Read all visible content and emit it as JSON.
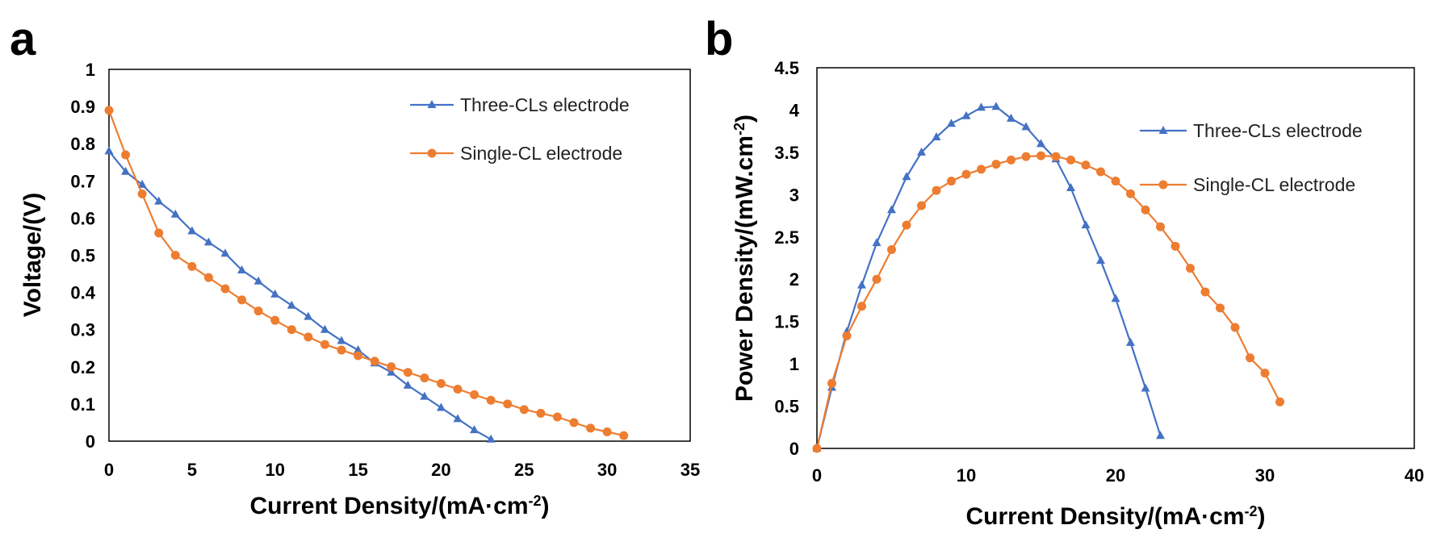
{
  "panels": {
    "a": "a",
    "b": "b"
  },
  "colors": {
    "three": "#4472C4",
    "single": "#ED7D31"
  },
  "chart_data": [
    {
      "type": "line",
      "panel": "a",
      "xlabel_main": "Current Density/(mA·cm",
      "xlabel_sup": "-2",
      "xlabel_end": ")",
      "ylabel": "Voltage/(V)",
      "xlim": [
        0,
        35
      ],
      "ylim": [
        0,
        1
      ],
      "xticks": [
        0,
        5,
        10,
        15,
        20,
        25,
        30,
        35
      ],
      "yticks": [
        0,
        0.1,
        0.2,
        0.3,
        0.4,
        0.5,
        0.6,
        0.7,
        0.8,
        0.9,
        1
      ],
      "xtick_labels": [
        "0",
        "5",
        "10",
        "15",
        "20",
        "25",
        "30",
        "35"
      ],
      "ytick_labels": [
        "0",
        "0.1",
        "0.2",
        "0.3",
        "0.4",
        "0.5",
        "0.6",
        "0.7",
        "0.8",
        "0.9",
        "1"
      ],
      "legend_position": "top-right",
      "series": [
        {
          "name": "Three-CLs electrode",
          "marker": "triangle",
          "x": [
            0,
            1,
            2,
            3,
            4,
            5,
            6,
            7,
            8,
            9,
            10,
            11,
            12,
            13,
            14,
            15,
            16,
            17,
            18,
            19,
            20,
            21,
            22,
            23
          ],
          "y": [
            0.78,
            0.725,
            0.69,
            0.645,
            0.61,
            0.565,
            0.535,
            0.505,
            0.46,
            0.43,
            0.395,
            0.365,
            0.335,
            0.3,
            0.27,
            0.245,
            0.21,
            0.185,
            0.15,
            0.12,
            0.09,
            0.06,
            0.03,
            0.005
          ]
        },
        {
          "name": "Single-CL electrode",
          "marker": "circle",
          "x": [
            0,
            1,
            2,
            3,
            4,
            5,
            6,
            7,
            8,
            9,
            10,
            11,
            12,
            13,
            14,
            15,
            16,
            17,
            18,
            19,
            20,
            21,
            22,
            23,
            24,
            25,
            26,
            27,
            28,
            29,
            30,
            31
          ],
          "y": [
            0.89,
            0.77,
            0.665,
            0.56,
            0.5,
            0.47,
            0.44,
            0.41,
            0.38,
            0.35,
            0.325,
            0.3,
            0.28,
            0.26,
            0.245,
            0.23,
            0.215,
            0.2,
            0.185,
            0.17,
            0.155,
            0.14,
            0.125,
            0.11,
            0.1,
            0.085,
            0.075,
            0.065,
            0.05,
            0.035,
            0.025,
            0.015
          ]
        }
      ]
    },
    {
      "type": "line",
      "panel": "b",
      "xlabel_main": "Current Density/(mA·cm",
      "xlabel_sup": "-2",
      "xlabel_end": ")",
      "ylabel_main": "Power Density/(mW.cm",
      "ylabel_sup": "-2",
      "ylabel_end": ")",
      "xlim": [
        0,
        40
      ],
      "ylim": [
        0,
        4.5
      ],
      "xticks": [
        0,
        10,
        20,
        30,
        40
      ],
      "yticks": [
        0,
        0.5,
        1,
        1.5,
        2,
        2.5,
        3,
        3.5,
        4,
        4.5
      ],
      "xtick_labels": [
        "0",
        "10",
        "20",
        "30",
        "40"
      ],
      "ytick_labels": [
        "0",
        "0.5",
        "1",
        "1.5",
        "2",
        "2.5",
        "3",
        "3.5",
        "4",
        "4.5"
      ],
      "legend_position": "top-right",
      "series": [
        {
          "name": "Three-CLs electrode",
          "marker": "triangle",
          "x": [
            0,
            1,
            2,
            3,
            4,
            5,
            6,
            7,
            8,
            9,
            10,
            11,
            12,
            13,
            14,
            15,
            16,
            17,
            18,
            19,
            20,
            21,
            22,
            23
          ],
          "y": [
            0,
            0.72,
            1.38,
            1.93,
            2.43,
            2.82,
            3.21,
            3.5,
            3.68,
            3.84,
            3.93,
            4.03,
            4.04,
            3.9,
            3.8,
            3.6,
            3.42,
            3.08,
            2.64,
            2.22,
            1.77,
            1.25,
            0.71,
            0.15
          ]
        },
        {
          "name": "Single-CL electrode",
          "marker": "circle",
          "x": [
            0,
            1,
            2,
            3,
            4,
            5,
            6,
            7,
            8,
            9,
            10,
            11,
            12,
            13,
            14,
            15,
            16,
            17,
            18,
            19,
            20,
            21,
            22,
            23,
            24,
            25,
            26,
            27,
            28,
            29,
            30,
            31
          ],
          "y": [
            0,
            0.77,
            1.33,
            1.68,
            2.0,
            2.35,
            2.64,
            2.87,
            3.05,
            3.16,
            3.24,
            3.3,
            3.36,
            3.41,
            3.45,
            3.46,
            3.45,
            3.41,
            3.35,
            3.27,
            3.16,
            3.01,
            2.82,
            2.62,
            2.39,
            2.13,
            1.85,
            1.66,
            1.43,
            1.07,
            0.89,
            0.55
          ]
        }
      ]
    }
  ]
}
